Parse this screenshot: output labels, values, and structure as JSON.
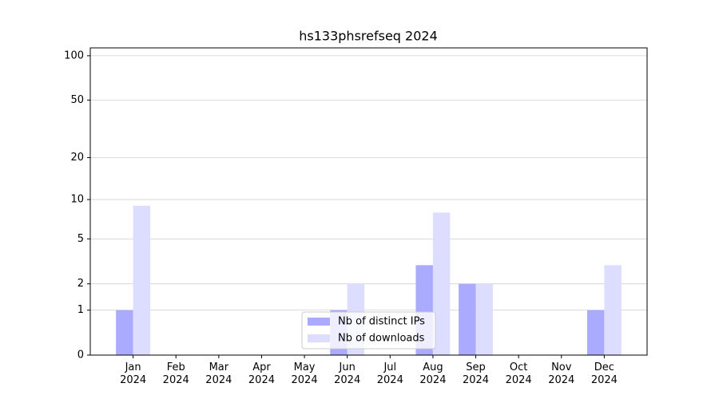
{
  "chart_data": {
    "type": "bar",
    "title": "hs133phsrefseq 2024",
    "categories": [
      "Jan\n2024",
      "Feb\n2024",
      "Mar\n2024",
      "Apr\n2024",
      "May\n2024",
      "Jun\n2024",
      "Jul\n2024",
      "Aug\n2024",
      "Sep\n2024",
      "Oct\n2024",
      "Nov\n2024",
      "Dec\n2024"
    ],
    "series": [
      {
        "name": "Nb of distinct IPs",
        "color": "#aaaaff",
        "values": [
          1,
          0,
          0,
          0,
          0,
          1,
          0,
          3,
          2,
          0,
          0,
          1
        ]
      },
      {
        "name": "Nb of downloads",
        "color": "#ddddff",
        "values": [
          9,
          0,
          0,
          0,
          0,
          2,
          0,
          8,
          2,
          0,
          0,
          3
        ]
      }
    ],
    "y_scale": "log1p",
    "ylim": [
      0,
      113
    ],
    "yticks": [
      0,
      1,
      2,
      5,
      10,
      20,
      50,
      100
    ],
    "grid": true,
    "legend": "lower center"
  }
}
